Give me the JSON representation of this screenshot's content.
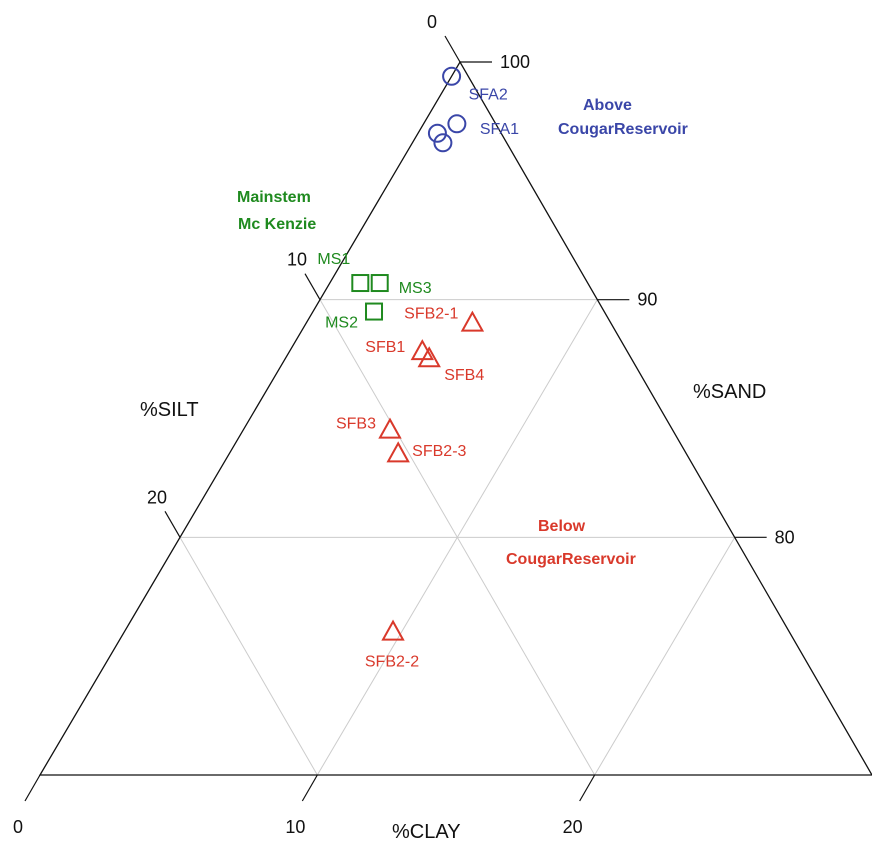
{
  "chart_data": {
    "type": "scatter",
    "title": "",
    "diagram": "ternary",
    "axes": {
      "sand": {
        "label": "%SAND",
        "ticks": [
          "100",
          "90",
          "80"
        ],
        "range": [
          70,
          100
        ]
      },
      "silt": {
        "label": "%SILT",
        "ticks": [
          "0",
          "10",
          "20"
        ],
        "range": [
          0,
          30
        ]
      },
      "clay": {
        "label": "%CLAY",
        "ticks": [
          "0",
          "10",
          "20"
        ],
        "range": [
          0,
          30
        ]
      }
    },
    "grid": true,
    "series": [
      {
        "group": "above",
        "color": "#3a46a8",
        "marker": "circle",
        "points": [
          {
            "label": "SFA2",
            "sand": 99.4,
            "silt": 0.6,
            "clay": 0.0
          },
          {
            "label": "SFA1",
            "sand": 97.4,
            "silt": 1.4,
            "clay": 1.2
          },
          {
            "label": "",
            "sand": 97.0,
            "silt": 2.3,
            "clay": 0.7
          },
          {
            "label": "",
            "sand": 96.6,
            "silt": 2.3,
            "clay": 1.1
          }
        ]
      },
      {
        "group": "mainstem",
        "color": "#1f8a1f",
        "marker": "square",
        "points": [
          {
            "label": "MS1",
            "sand": 90.7,
            "silt": 8.2,
            "clay": 1.1
          },
          {
            "label": "MS3",
            "sand": 90.7,
            "silt": 7.5,
            "clay": 1.8
          },
          {
            "label": "MS2",
            "sand": 89.5,
            "silt": 8.3,
            "clay": 2.2
          }
        ]
      },
      {
        "group": "below",
        "color": "#d9392b",
        "marker": "triangle",
        "points": [
          {
            "label": "SFB2-1",
            "sand": 89.0,
            "silt": 5.0,
            "clay": 6.0
          },
          {
            "label": "SFB1",
            "sand": 87.8,
            "silt": 7.4,
            "clay": 4.8
          },
          {
            "label": "SFB4",
            "sand": 87.5,
            "silt": 7.3,
            "clay": 5.2
          },
          {
            "label": "SFB3",
            "sand": 84.5,
            "silt": 10.2,
            "clay": 5.3
          },
          {
            "label": "SFB2-3",
            "sand": 83.5,
            "silt": 10.4,
            "clay": 6.1
          },
          {
            "label": "SFB2-2",
            "sand": 76.0,
            "silt": 14.3,
            "clay": 9.7
          }
        ]
      }
    ],
    "group_labels": {
      "above": [
        "Above",
        "CougarReservoir"
      ],
      "mainstem": [
        "Mainstem",
        "Mc Kenzie"
      ],
      "below": [
        "Below",
        "CougarReservoir"
      ]
    }
  }
}
